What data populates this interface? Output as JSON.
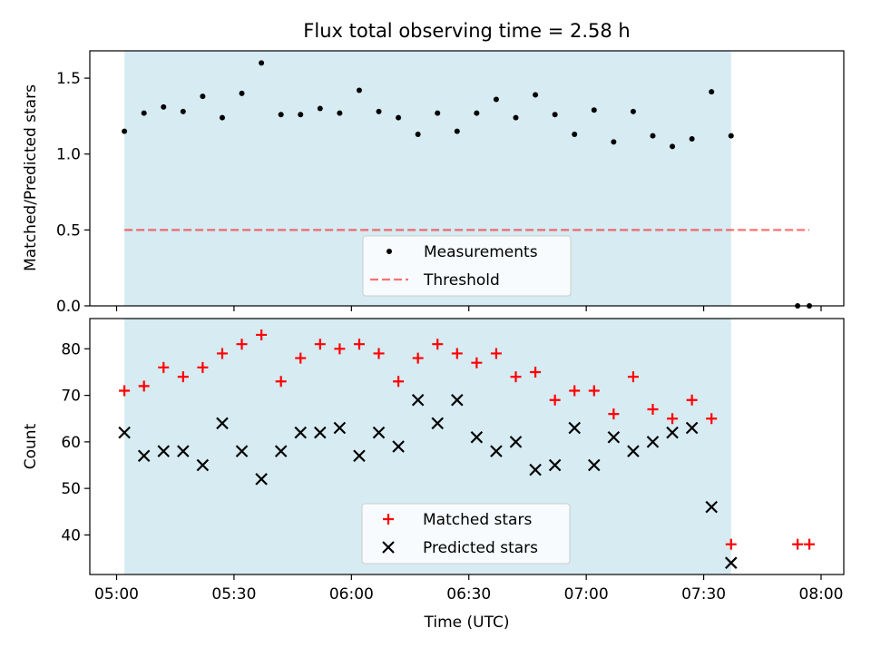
{
  "title": "Flux total observing time = 2.58 h",
  "colors": {
    "shade": "#add8e6",
    "measure": "#000000",
    "threshold": "#ff0000",
    "matched": "#ff0000",
    "predicted": "#000000"
  },
  "chart_data": [
    {
      "type": "scatter",
      "ylabel": "Matched/Predicted stars",
      "xlabel": "",
      "ylim": [
        0,
        1.68
      ],
      "yticks": [
        "0.0",
        "0.5",
        "1.0",
        "1.5"
      ],
      "shaded_interval": [
        "05:02",
        "07:37"
      ],
      "legend": {
        "placement": "lower-center",
        "entries": [
          "Measurements",
          "Threshold"
        ]
      },
      "threshold": {
        "name": "Threshold",
        "value": 0.5,
        "x": [
          "05:02",
          "07:57"
        ]
      },
      "series": [
        {
          "name": "Measurements",
          "x": [
            "05:02",
            "05:07",
            "05:12",
            "05:17",
            "05:22",
            "05:27",
            "05:32",
            "05:37",
            "05:42",
            "05:47",
            "05:52",
            "05:57",
            "06:02",
            "06:07",
            "06:12",
            "06:17",
            "06:22",
            "06:27",
            "06:32",
            "06:37",
            "06:42",
            "06:47",
            "06:52",
            "06:57",
            "07:02",
            "07:07",
            "07:12",
            "07:17",
            "07:22",
            "07:27",
            "07:32",
            "07:37",
            "07:54",
            "07:57"
          ],
          "y": [
            1.15,
            1.27,
            1.31,
            1.28,
            1.38,
            1.24,
            1.4,
            1.6,
            1.26,
            1.26,
            1.3,
            1.27,
            1.42,
            1.28,
            1.24,
            1.13,
            1.27,
            1.15,
            1.27,
            1.36,
            1.24,
            1.39,
            1.26,
            1.13,
            1.29,
            1.08,
            1.28,
            1.12,
            1.05,
            1.1,
            1.41,
            1.12,
            0.0,
            0.0
          ]
        }
      ]
    },
    {
      "type": "scatter",
      "xlabel": "Time (UTC)",
      "ylabel": "Count",
      "ylim": [
        31.5,
        86.5
      ],
      "yticks": [
        "40",
        "50",
        "60",
        "70",
        "80"
      ],
      "xticks": [
        "05:00",
        "05:30",
        "06:00",
        "06:30",
        "07:00",
        "07:30",
        "08:00"
      ],
      "shaded_interval": [
        "05:02",
        "07:37"
      ],
      "legend": {
        "placement": "lower-center",
        "entries": [
          "Matched stars",
          "Predicted stars"
        ]
      },
      "series": [
        {
          "name": "Matched stars",
          "x": [
            "05:02",
            "05:07",
            "05:12",
            "05:17",
            "05:22",
            "05:27",
            "05:32",
            "05:37",
            "05:42",
            "05:47",
            "05:52",
            "05:57",
            "06:02",
            "06:07",
            "06:12",
            "06:17",
            "06:22",
            "06:27",
            "06:32",
            "06:37",
            "06:42",
            "06:47",
            "06:52",
            "06:57",
            "07:02",
            "07:07",
            "07:12",
            "07:17",
            "07:22",
            "07:27",
            "07:32",
            "07:37",
            "07:54",
            "07:57"
          ],
          "y": [
            71,
            72,
            76,
            74,
            76,
            79,
            81,
            83,
            73,
            78,
            81,
            80,
            81,
            79,
            73,
            78,
            81,
            79,
            77,
            79,
            74,
            75,
            69,
            71,
            71,
            66,
            74,
            67,
            65,
            69,
            65,
            38,
            38,
            38
          ]
        },
        {
          "name": "Predicted stars",
          "x": [
            "05:02",
            "05:07",
            "05:12",
            "05:17",
            "05:22",
            "05:27",
            "05:32",
            "05:37",
            "05:42",
            "05:47",
            "05:52",
            "05:57",
            "06:02",
            "06:07",
            "06:12",
            "06:17",
            "06:22",
            "06:27",
            "06:32",
            "06:37",
            "06:42",
            "06:47",
            "06:52",
            "06:57",
            "07:02",
            "07:07",
            "07:12",
            "07:17",
            "07:22",
            "07:27",
            "07:32",
            "07:37"
          ],
          "y": [
            62,
            57,
            58,
            58,
            55,
            64,
            58,
            52,
            58,
            62,
            62,
            63,
            57,
            62,
            59,
            69,
            64,
            69,
            61,
            58,
            60,
            54,
            55,
            63,
            55,
            61,
            58,
            60,
            62,
            63,
            46,
            34
          ]
        }
      ]
    }
  ]
}
